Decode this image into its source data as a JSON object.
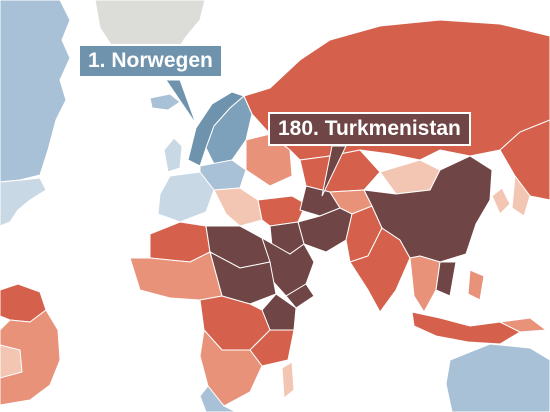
{
  "map": {
    "colors": {
      "ocean": "#ffffff",
      "best": "#a9c1d6",
      "good": "#c9d8e5",
      "satisfactory": "#f2c6b2",
      "difficult": "#e8927a",
      "serious": "#d5614c",
      "very_serious": "#6f4545"
    },
    "highlight": {
      "best": {
        "rank_label": "1. Norwegen",
        "country": "Norwegen",
        "rank": 1
      },
      "worst": {
        "rank_label": "180. Turkmenistan",
        "country": "Turkmenistan",
        "rank": 180
      }
    }
  }
}
